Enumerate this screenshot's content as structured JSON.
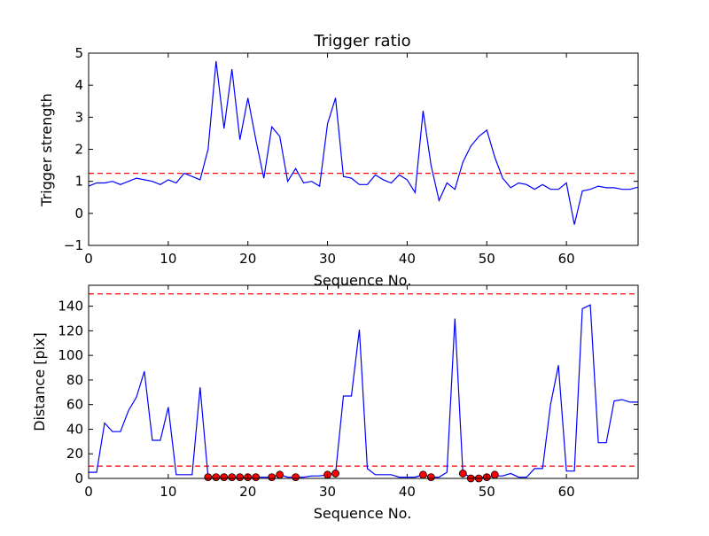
{
  "chart_data": [
    {
      "type": "line",
      "title": "Trigger ratio",
      "xlabel": "Sequence No.",
      "ylabel": "Trigger strength",
      "xlim": [
        0,
        69
      ],
      "ylim": [
        -1,
        5
      ],
      "xticks": [
        "0",
        "10",
        "20",
        "30",
        "40",
        "50",
        "60"
      ],
      "yticks": [
        "−1",
        "0",
        "1",
        "2",
        "3",
        "4",
        "5"
      ],
      "line_color": "#0000ff",
      "threshold_color": "#ff0000",
      "thresholds": [
        1.25
      ],
      "grid": false,
      "series": [
        {
          "x": [
            0,
            1,
            2,
            3,
            4,
            5,
            6,
            7,
            8,
            9,
            10,
            11,
            12,
            13,
            14,
            15,
            16,
            17,
            18,
            19,
            20,
            21,
            22,
            23,
            24,
            25,
            26,
            27,
            28,
            29,
            30,
            31,
            32,
            33,
            34,
            35,
            36,
            37,
            38,
            39,
            40,
            41,
            42,
            43,
            44,
            45,
            46,
            47,
            48,
            49,
            50,
            51,
            52,
            53,
            54,
            55,
            56,
            57,
            58,
            59,
            60,
            61,
            62,
            63,
            64,
            65,
            66,
            67,
            68,
            69
          ],
          "values": [
            0.85,
            0.95,
            0.95,
            1.0,
            0.9,
            1.0,
            1.1,
            1.05,
            1.0,
            0.9,
            1.05,
            0.95,
            1.25,
            1.15,
            1.05,
            2.0,
            4.75,
            2.65,
            4.5,
            2.3,
            3.6,
            2.3,
            1.1,
            2.7,
            2.4,
            1.0,
            1.4,
            0.95,
            1.0,
            0.85,
            2.8,
            3.6,
            1.15,
            1.1,
            0.9,
            0.9,
            1.2,
            1.05,
            0.95,
            1.2,
            1.05,
            0.65,
            3.2,
            1.5,
            0.4,
            0.95,
            0.75,
            1.6,
            2.1,
            2.4,
            2.6,
            1.75,
            1.1,
            0.8,
            0.95,
            0.9,
            0.75,
            0.9,
            0.75,
            0.75,
            0.95,
            -0.35,
            0.7,
            0.75,
            0.85,
            0.8,
            0.8,
            0.75,
            0.75,
            0.82
          ]
        }
      ]
    },
    {
      "type": "line",
      "xlabel": "Sequence No.",
      "ylabel": "Distance [pix]",
      "xlim": [
        0,
        69
      ],
      "ylim": [
        0,
        157
      ],
      "xticks": [
        "0",
        "10",
        "20",
        "30",
        "40",
        "50",
        "60"
      ],
      "yticks": [
        "0",
        "20",
        "40",
        "60",
        "80",
        "100",
        "120",
        "140"
      ],
      "line_color": "#0000ff",
      "threshold_color": "#ff0000",
      "marker_color": "#ff0000",
      "thresholds": [
        10,
        150
      ],
      "grid": false,
      "series": [
        {
          "x": [
            0,
            1,
            2,
            3,
            4,
            5,
            6,
            7,
            8,
            9,
            10,
            11,
            12,
            13,
            14,
            15,
            16,
            17,
            18,
            19,
            20,
            21,
            22,
            23,
            24,
            25,
            26,
            27,
            28,
            29,
            30,
            31,
            32,
            33,
            34,
            35,
            36,
            37,
            38,
            39,
            40,
            41,
            42,
            43,
            44,
            45,
            46,
            47,
            48,
            49,
            50,
            51,
            52,
            53,
            54,
            55,
            56,
            57,
            58,
            59,
            60,
            61,
            62,
            63,
            64,
            65,
            66,
            67,
            68,
            69
          ],
          "values": [
            5,
            5,
            45,
            38,
            38,
            55,
            66,
            87,
            31,
            31,
            58,
            3,
            3,
            3,
            74,
            1,
            2,
            1,
            1,
            1,
            1,
            1,
            1,
            1,
            3,
            1,
            1,
            1,
            2,
            2,
            3,
            4,
            67,
            67,
            121,
            8,
            3,
            3,
            3,
            1,
            1,
            1,
            3,
            1,
            1,
            5,
            130,
            4,
            1,
            1,
            1,
            2,
            2,
            4,
            1,
            1,
            8,
            8,
            60,
            92,
            6,
            6,
            138,
            141,
            29,
            29,
            63,
            64,
            62,
            62
          ]
        }
      ],
      "markers": {
        "x": [
          15,
          16,
          17,
          18,
          19,
          20,
          21,
          23,
          24,
          26,
          30,
          31,
          42,
          43,
          47,
          48,
          49,
          50,
          51
        ],
        "values": [
          1,
          1,
          1,
          1,
          1,
          1,
          1,
          1,
          3,
          1,
          3,
          4,
          3,
          1,
          4,
          0,
          0,
          1,
          3
        ]
      }
    }
  ]
}
